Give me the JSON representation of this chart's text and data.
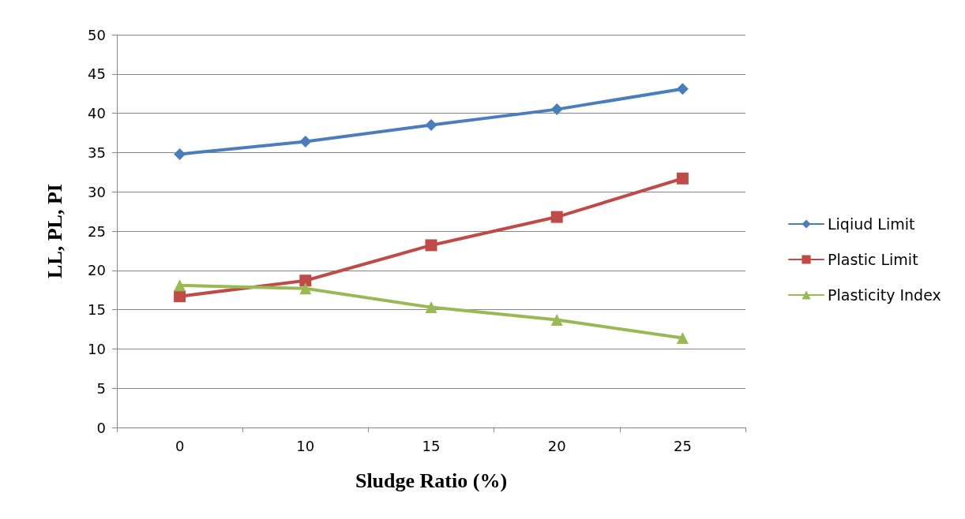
{
  "chart_data": {
    "type": "line",
    "xlabel": "Sludge Ratio (%)",
    "ylabel": "LL, PL, PI",
    "categories": [
      "0",
      "10",
      "15",
      "20",
      "25"
    ],
    "series": [
      {
        "name": "Liqiud Limit",
        "color": "#4a7ebb",
        "marker": "diamond",
        "values": [
          34.8,
          36.4,
          38.5,
          40.5,
          43.1
        ]
      },
      {
        "name": "Plastic Limit",
        "color": "#be4b48",
        "marker": "square",
        "values": [
          16.7,
          18.7,
          23.2,
          26.8,
          31.7
        ]
      },
      {
        "name": "Plasticity Index",
        "color": "#98b954",
        "marker": "triangle",
        "values": [
          18.1,
          17.7,
          15.3,
          13.7,
          11.4
        ]
      }
    ],
    "ylim": [
      0,
      50
    ],
    "yticks": [
      0,
      5,
      10,
      15,
      20,
      25,
      30,
      35,
      40,
      45,
      50
    ],
    "grid": "y",
    "legend": "right",
    "line_style": "solid"
  }
}
